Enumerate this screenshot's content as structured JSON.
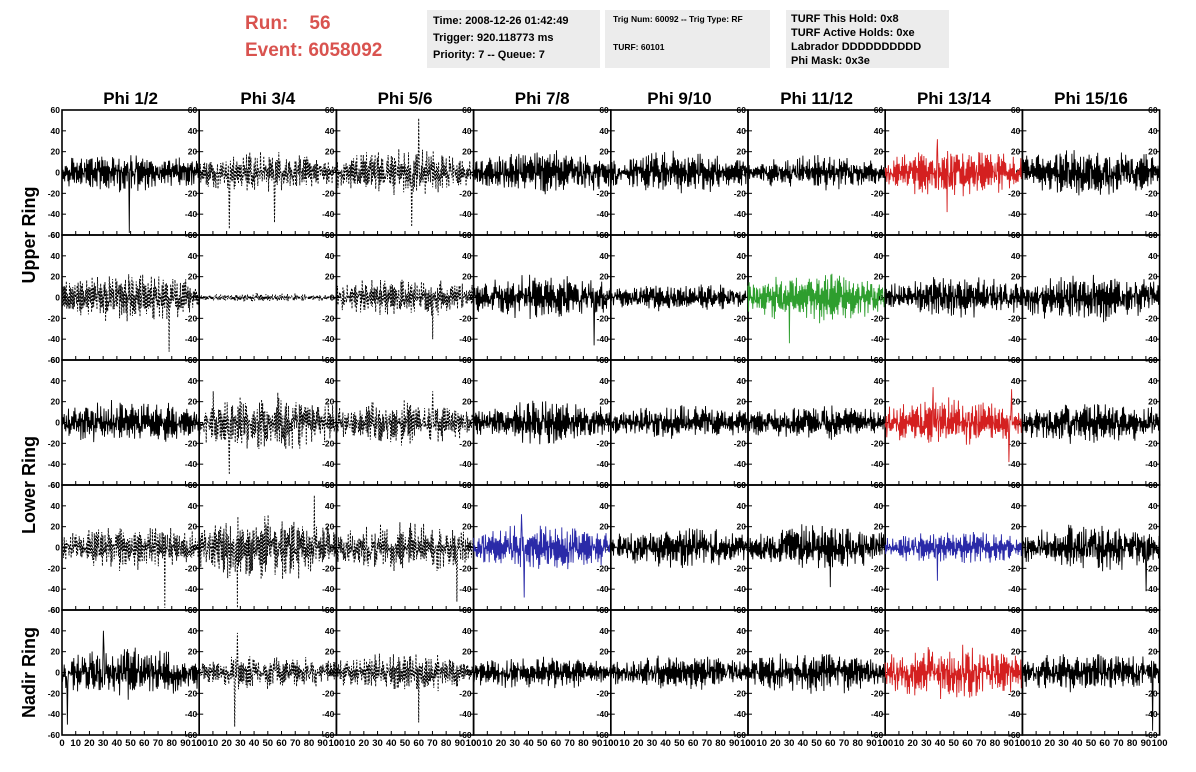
{
  "header": {
    "run_label": "Run:",
    "run_value": "56",
    "event_label": "Event:",
    "event_value": "6058092",
    "time": "Time: 2008-12-26 01:42:49",
    "trigger": "Trigger: 920.118773 ms",
    "priority": "Priority: 7 -- Queue: 7",
    "trig_num": "Trig Num: 60092 -- Trig Type: RF",
    "turf": "TURF: 60101",
    "turf_this_hold": "TURF This Hold: 0x8",
    "turf_active_holds": "TURF Active Holds: 0xe",
    "labrador": "Labrador DDDDDDDDDD",
    "phi_mask": "Phi Mask: 0x3e"
  },
  "chart_data": {
    "type": "line",
    "columns": [
      "Phi 1/2",
      "Phi 3/4",
      "Phi 5/6",
      "Phi 7/8",
      "Phi 9/10",
      "Phi 11/12",
      "Phi 13/14",
      "Phi 15/16"
    ],
    "row_groups": [
      {
        "label": "Upper Ring",
        "rows": [
          0,
          1
        ]
      },
      {
        "label": "Lower Ring",
        "rows": [
          2,
          3
        ]
      },
      {
        "label": "Nadir Ring",
        "rows": [
          4
        ]
      }
    ],
    "xlim": [
      0,
      100
    ],
    "ylim": [
      -60,
      60
    ],
    "x_ticks": [
      "0",
      "10",
      "20",
      "30",
      "40",
      "50",
      "60",
      "70",
      "80",
      "90",
      "100"
    ],
    "y_ticks": [
      "60",
      "40",
      "20",
      "0",
      "-20",
      "-40",
      "-60"
    ],
    "colors": {
      "default": "#000000",
      "red": "#d42020",
      "green": "#2e9e2e",
      "blue": "#2a2aa8"
    },
    "panels": [
      [
        {
          "style": "solid",
          "color": "default",
          "amp": 14,
          "spikes": [
            [
              49,
              -58
            ]
          ]
        },
        {
          "style": "dashed",
          "color": "default",
          "amp": 14,
          "spikes": [
            [
              22,
              -54
            ],
            [
              55,
              -48
            ]
          ]
        },
        {
          "style": "dashed",
          "color": "default",
          "amp": 16,
          "spikes": [
            [
              55,
              -52
            ],
            [
              60,
              52
            ]
          ]
        },
        {
          "style": "solid",
          "color": "default",
          "amp": 15,
          "spikes": []
        },
        {
          "style": "solid",
          "color": "default",
          "amp": 15,
          "spikes": []
        },
        {
          "style": "solid",
          "color": "default",
          "amp": 12,
          "spikes": []
        },
        {
          "style": "solid",
          "color": "red",
          "amp": 17,
          "spikes": [
            [
              38,
              32
            ],
            [
              45,
              -38
            ]
          ]
        },
        {
          "style": "solid",
          "color": "default",
          "amp": 17,
          "spikes": []
        }
      ],
      [
        {
          "style": "dashed",
          "color": "default",
          "amp": 17,
          "spikes": [
            [
              78,
              -52
            ]
          ]
        },
        {
          "style": "dashed",
          "color": "default",
          "amp": 3,
          "spikes": []
        },
        {
          "style": "dashed",
          "color": "default",
          "amp": 14,
          "spikes": [
            [
              70,
              -40
            ]
          ]
        },
        {
          "style": "solid",
          "color": "default",
          "amp": 16,
          "spikes": [
            [
              88,
              -46
            ]
          ]
        },
        {
          "style": "solid",
          "color": "default",
          "amp": 10,
          "spikes": []
        },
        {
          "style": "solid",
          "color": "green",
          "amp": 17,
          "spikes": [
            [
              30,
              -44
            ]
          ]
        },
        {
          "style": "solid",
          "color": "default",
          "amp": 15,
          "spikes": []
        },
        {
          "style": "solid",
          "color": "default",
          "amp": 17,
          "spikes": []
        }
      ],
      [
        {
          "style": "solid",
          "color": "default",
          "amp": 15,
          "spikes": []
        },
        {
          "style": "dashed",
          "color": "default",
          "amp": 20,
          "spikes": [
            [
              22,
              -50
            ],
            [
              10,
              30
            ]
          ]
        },
        {
          "style": "dashed",
          "color": "default",
          "amp": 15,
          "spikes": [
            [
              70,
              30
            ]
          ]
        },
        {
          "style": "solid",
          "color": "default",
          "amp": 15,
          "spikes": []
        },
        {
          "style": "solid",
          "color": "default",
          "amp": 12,
          "spikes": []
        },
        {
          "style": "solid",
          "color": "default",
          "amp": 12,
          "spikes": []
        },
        {
          "style": "solid",
          "color": "red",
          "amp": 17,
          "spikes": [
            [
              35,
              34
            ],
            [
              92,
              32
            ],
            [
              90,
              -38
            ]
          ]
        },
        {
          "style": "solid",
          "color": "default",
          "amp": 15,
          "spikes": []
        }
      ],
      [
        {
          "style": "dashed",
          "color": "default",
          "amp": 16,
          "spikes": [
            [
              75,
              -58
            ]
          ]
        },
        {
          "style": "dashed",
          "color": "default",
          "amp": 24,
          "spikes": [
            [
              28,
              -58
            ],
            [
              84,
              50
            ]
          ]
        },
        {
          "style": "dashed",
          "color": "default",
          "amp": 17,
          "spikes": [
            [
              88,
              -52
            ]
          ]
        },
        {
          "style": "solid",
          "color": "blue",
          "amp": 16,
          "spikes": [
            [
              35,
              32
            ],
            [
              37,
              -48
            ]
          ]
        },
        {
          "style": "solid",
          "color": "default",
          "amp": 14,
          "spikes": []
        },
        {
          "style": "solid",
          "color": "default",
          "amp": 16,
          "spikes": [
            [
              60,
              -38
            ]
          ]
        },
        {
          "style": "solid",
          "color": "blue",
          "amp": 12,
          "spikes": [
            [
              38,
              -32
            ]
          ]
        },
        {
          "style": "solid",
          "color": "default",
          "amp": 17,
          "spikes": [
            [
              90,
              -42
            ]
          ]
        }
      ],
      [
        {
          "style": "solid",
          "color": "default",
          "amp": 18,
          "spikes": [
            [
              4,
              -50
            ],
            [
              30,
              40
            ]
          ]
        },
        {
          "style": "dashed",
          "color": "default",
          "amp": 12,
          "spikes": [
            [
              28,
              38
            ],
            [
              26,
              -52
            ]
          ]
        },
        {
          "style": "dashed",
          "color": "default",
          "amp": 14,
          "spikes": [
            [
              60,
              -48
            ]
          ]
        },
        {
          "style": "solid",
          "color": "default",
          "amp": 12,
          "spikes": []
        },
        {
          "style": "solid",
          "color": "default",
          "amp": 12,
          "spikes": []
        },
        {
          "style": "solid",
          "color": "default",
          "amp": 15,
          "spikes": []
        },
        {
          "style": "solid",
          "color": "red",
          "amp": 19,
          "spikes": []
        },
        {
          "style": "solid",
          "color": "default",
          "amp": 14,
          "spikes": [
            [
              95,
              -56
            ]
          ]
        }
      ]
    ]
  }
}
